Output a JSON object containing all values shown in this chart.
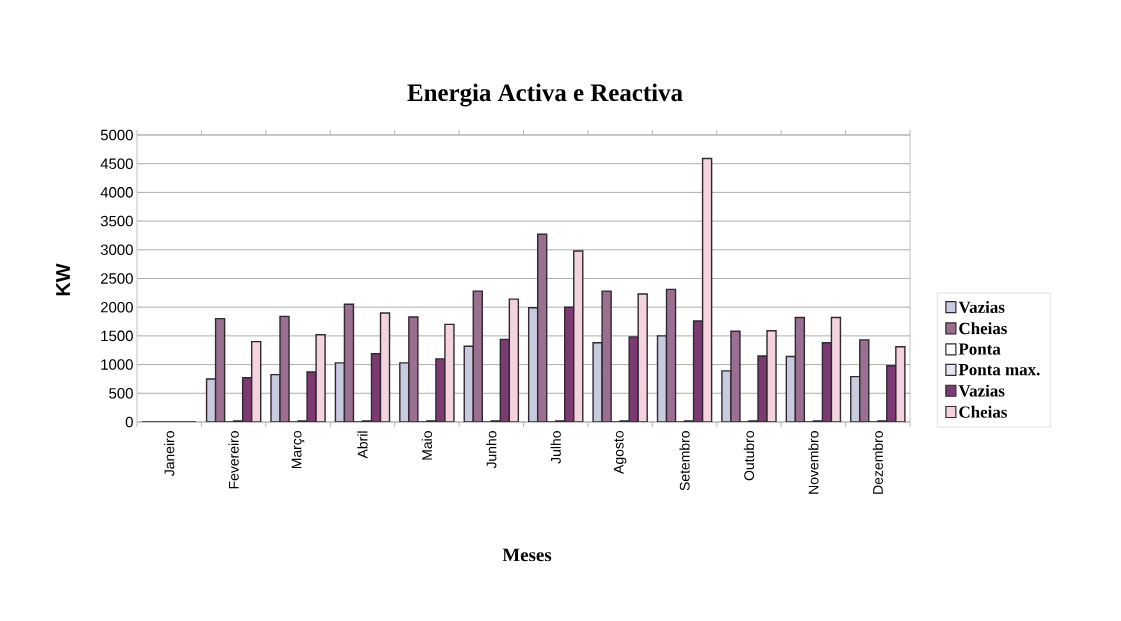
{
  "chart_data": {
    "type": "bar",
    "title": "Energia Activa e Reactiva",
    "xlabel": "Meses",
    "ylabel": "KW",
    "categories": [
      "Janeiro",
      "Fevereiro",
      "Março",
      "Abril",
      "Maio",
      "Junho",
      "Julho",
      "Agosto",
      "Setembro",
      "Outubro",
      "Novembro",
      "Dezembro"
    ],
    "series": [
      {
        "name": "Vazias",
        "color": "#c8cade",
        "values": [
          0,
          750,
          825,
          1030,
          1030,
          1320,
          1990,
          1380,
          1500,
          890,
          1140,
          790
        ]
      },
      {
        "name": "Cheias",
        "color": "#9a6f8f",
        "values": [
          0,
          1800,
          1840,
          2050,
          1830,
          2280,
          3270,
          2280,
          2310,
          1580,
          1820,
          1430
        ]
      },
      {
        "name": "Ponta",
        "color": "#ffffff",
        "values": [
          0,
          0,
          0,
          0,
          0,
          0,
          0,
          0,
          0,
          0,
          0,
          0
        ]
      },
      {
        "name": "Ponta max.",
        "color": "#e6e6f0",
        "values": [
          0,
          20,
          20,
          20,
          20,
          20,
          20,
          20,
          20,
          20,
          20,
          20
        ]
      },
      {
        "name": "Vazias",
        "color": "#7b3b72",
        "values": [
          0,
          770,
          870,
          1190,
          1100,
          1440,
          2000,
          1480,
          1760,
          1150,
          1380,
          980
        ]
      },
      {
        "name": "Cheias",
        "color": "#f2d3de",
        "values": [
          0,
          1400,
          1520,
          1900,
          1700,
          2140,
          2980,
          2230,
          4590,
          1590,
          1820,
          1310
        ]
      }
    ],
    "ylim": [
      0,
      5000
    ],
    "yticks": [
      0,
      500,
      1000,
      1500,
      2000,
      2500,
      3000,
      3500,
      4000,
      4500,
      5000
    ],
    "grid": "y",
    "legend": "right"
  }
}
